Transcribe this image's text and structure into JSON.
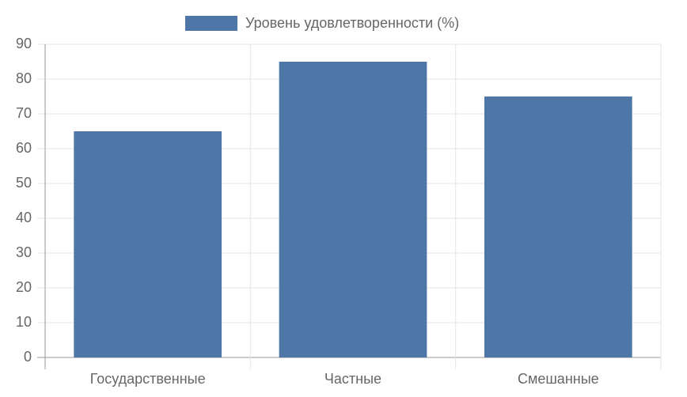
{
  "chart_data": {
    "type": "bar",
    "series": [
      {
        "name": "Уровень удовлетворенности (%)",
        "color": "#4e77a8",
        "values": [
          65,
          85,
          75
        ]
      }
    ],
    "categories": [
      "Государственные",
      "Частные",
      "Смешанные"
    ],
    "ylim": [
      0,
      90
    ],
    "yticks": [
      0,
      10,
      20,
      30,
      40,
      50,
      60,
      70,
      80,
      90
    ],
    "grid": true,
    "legend": "top"
  }
}
